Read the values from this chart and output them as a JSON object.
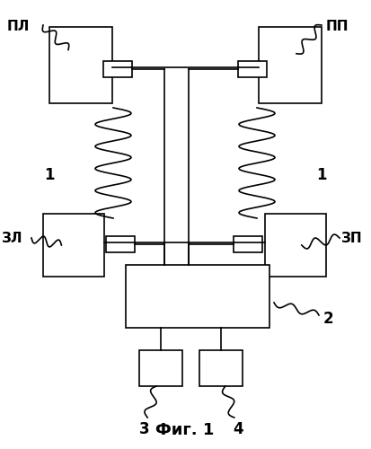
{
  "title": "Фиг. 1",
  "labels": {
    "PL": "ПЛ",
    "PP": "ПП",
    "ZL": "ЗЛ",
    "ZP": "ЗП",
    "n1": "1",
    "n2": "2",
    "n3": "3",
    "n4": "4"
  },
  "colors": {
    "line": "#000000",
    "box_fill": "#ffffff",
    "box_edge": "#000000",
    "bg": "#ffffff"
  },
  "lw": 1.2,
  "fig_width": 4.13,
  "fig_height": 5.0,
  "dpi": 100
}
